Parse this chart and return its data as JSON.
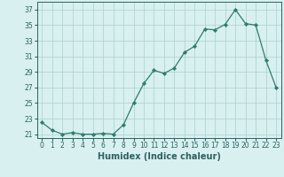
{
  "x": [
    0,
    1,
    2,
    3,
    4,
    5,
    6,
    7,
    8,
    9,
    10,
    11,
    12,
    13,
    14,
    15,
    16,
    17,
    18,
    19,
    20,
    21,
    22,
    23
  ],
  "y": [
    22.5,
    21.5,
    21.0,
    21.2,
    21.0,
    21.0,
    21.1,
    21.0,
    22.2,
    25.0,
    27.5,
    29.2,
    28.8,
    29.5,
    31.5,
    32.3,
    34.5,
    34.4,
    35.1,
    37.0,
    35.2,
    35.0,
    30.5,
    27.0
  ],
  "line_color": "#2e7d6e",
  "marker": "D",
  "marker_size": 2.2,
  "bg_color": "#d8f0f0",
  "grid_color": "#aacfcf",
  "xlabel": "Humidex (Indice chaleur)",
  "ylim": [
    20.5,
    38
  ],
  "yticks": [
    21,
    23,
    25,
    27,
    29,
    31,
    33,
    35,
    37
  ],
  "xticks": [
    0,
    1,
    2,
    3,
    4,
    5,
    6,
    7,
    8,
    9,
    10,
    11,
    12,
    13,
    14,
    15,
    16,
    17,
    18,
    19,
    20,
    21,
    22,
    23
  ],
  "tick_fontsize": 5.5,
  "label_fontsize": 7.0,
  "tick_color": "#2e6060",
  "label_color": "#2e6060"
}
